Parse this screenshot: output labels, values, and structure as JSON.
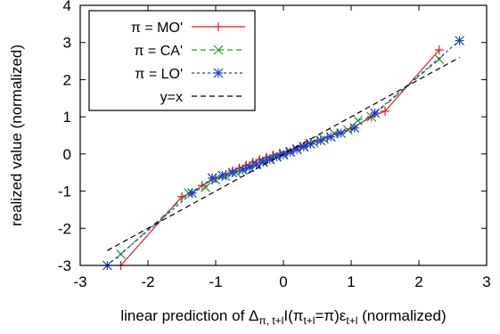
{
  "chart_data": {
    "type": "line",
    "xlabel": "linear prediction of Δ_{π, t+l}I(π_{t+l}=π)ε_{t+l} (normalized)",
    "ylabel": "realized value (normalized)",
    "xlim": [
      -3,
      3
    ],
    "ylim": [
      -3,
      4
    ],
    "xticks": [
      "-3",
      "-2",
      "-1",
      "0",
      "1",
      "2",
      "3"
    ],
    "yticks": [
      "-3",
      "-2",
      "-1",
      "0",
      "1",
      "2",
      "3",
      "4"
    ],
    "grid": false,
    "legend_position": "top-left",
    "series": [
      {
        "name": "π = MO'",
        "color": "#e41a1c",
        "dash": "solid",
        "marker": "plus",
        "x": [
          -2.4,
          -1.5,
          -1.35,
          -1.2,
          -1.0,
          -0.85,
          -0.75,
          -0.65,
          -0.55,
          -0.45,
          -0.35,
          -0.25,
          -0.15,
          -0.05,
          0.05,
          0.15,
          0.25,
          0.35,
          0.5,
          0.65,
          0.8,
          1.0,
          1.3,
          1.5,
          2.3
        ],
        "y": [
          -3.0,
          -1.15,
          -1.05,
          -0.85,
          -0.65,
          -0.55,
          -0.45,
          -0.38,
          -0.3,
          -0.22,
          -0.15,
          -0.09,
          -0.03,
          0.02,
          0.07,
          0.13,
          0.2,
          0.28,
          0.36,
          0.45,
          0.55,
          0.68,
          1.0,
          1.15,
          2.8
        ]
      },
      {
        "name": "π = CA'",
        "color": "#1a9e1a",
        "dash": "dashed",
        "marker": "x",
        "x": [
          -2.4,
          -1.4,
          -1.15,
          -1.0,
          -0.85,
          -0.7,
          -0.6,
          -0.5,
          -0.4,
          -0.3,
          -0.2,
          -0.1,
          0.0,
          0.1,
          0.2,
          0.3,
          0.45,
          0.6,
          0.75,
          0.95,
          1.1,
          1.3,
          2.3
        ],
        "y": [
          -2.7,
          -1.05,
          -0.9,
          -0.7,
          -0.6,
          -0.5,
          -0.42,
          -0.35,
          -0.28,
          -0.2,
          -0.13,
          -0.06,
          0.0,
          0.06,
          0.13,
          0.2,
          0.3,
          0.4,
          0.55,
          0.65,
          0.9,
          1.0,
          2.55
        ]
      },
      {
        "name": "π = LO'",
        "color": "#1f3bd6",
        "dash": "dotted",
        "marker": "star",
        "x": [
          -2.6,
          -1.35,
          -1.05,
          -0.9,
          -0.75,
          -0.6,
          -0.5,
          -0.4,
          -0.3,
          -0.2,
          -0.1,
          0.0,
          0.1,
          0.2,
          0.3,
          0.4,
          0.55,
          0.7,
          0.85,
          1.05,
          1.35,
          2.6
        ],
        "y": [
          -3.0,
          -1.05,
          -0.65,
          -0.58,
          -0.5,
          -0.43,
          -0.36,
          -0.29,
          -0.22,
          -0.15,
          -0.08,
          -0.02,
          0.05,
          0.12,
          0.19,
          0.27,
          0.36,
          0.46,
          0.56,
          0.7,
          1.1,
          3.05
        ]
      },
      {
        "name": "y=x",
        "color": "#000000",
        "dash": "dashed",
        "marker": "none",
        "x": [
          -2.6,
          2.6
        ],
        "y": [
          -2.6,
          2.6
        ]
      }
    ]
  }
}
